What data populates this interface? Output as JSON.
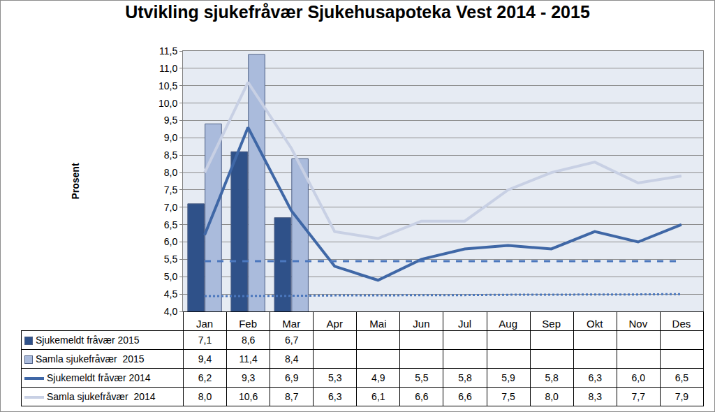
{
  "chart_data": {
    "type": "bar",
    "title": "Utvikling sjukefråvær Sjukehusapoteka Vest 2014 - 2015",
    "y_label": "Prosent",
    "categories": [
      "Jan",
      "Feb",
      "Mar",
      "Apr",
      "Mai",
      "Jun",
      "Jul",
      "Aug",
      "Sep",
      "Okt",
      "Nov",
      "Des"
    ],
    "series": [
      {
        "name": "Sjukemeldt fråvær 2015",
        "type": "bar",
        "color": "#2f5189",
        "values": [
          7.1,
          8.6,
          6.7,
          null,
          null,
          null,
          null,
          null,
          null,
          null,
          null,
          null
        ],
        "value_labels": [
          "7,1",
          "8,6",
          "6,7",
          null,
          null,
          null,
          null,
          null,
          null,
          null,
          null,
          null
        ]
      },
      {
        "name": "Samla sjukefråvær  2015",
        "type": "bar",
        "color": "#aabbdc",
        "values": [
          9.4,
          11.4,
          8.4,
          null,
          null,
          null,
          null,
          null,
          null,
          null,
          null,
          null
        ],
        "value_labels": [
          "9,4",
          "11,4",
          "8,4",
          null,
          null,
          null,
          null,
          null,
          null,
          null,
          null,
          null
        ]
      },
      {
        "name": "Sjukemeldt fråvær 2014",
        "type": "line",
        "color": "#3f67a6",
        "line_style": "solid",
        "values": [
          6.2,
          9.3,
          6.9,
          5.3,
          4.9,
          5.5,
          5.8,
          5.9,
          5.8,
          6.3,
          6.0,
          6.5
        ],
        "value_labels": [
          "6,2",
          "9,3",
          "6,9",
          "5,3",
          "4,9",
          "5,5",
          "5,8",
          "5,9",
          "5,8",
          "6,3",
          "6,0",
          "6,5"
        ]
      },
      {
        "name": "Samla sjukefråvær  2014",
        "type": "line",
        "color": "#c8d0e4",
        "line_style": "solid",
        "values": [
          8.0,
          10.6,
          8.7,
          6.3,
          6.1,
          6.6,
          6.6,
          7.5,
          8.0,
          8.3,
          7.7,
          7.9
        ],
        "value_labels": [
          "8,0",
          "10,6",
          "8,7",
          "6,3",
          "6,1",
          "6,6",
          "6,6",
          "7,5",
          "8,0",
          "8,3",
          "7,7",
          "7,9"
        ]
      },
      {
        "type": "line",
        "color": "#4b77bd",
        "line_style": "dashed",
        "values": [
          5.45,
          5.45,
          5.45,
          5.45,
          5.45,
          5.45,
          5.45,
          5.45,
          5.45,
          5.45,
          5.45,
          5.45
        ]
      },
      {
        "type": "line",
        "color": "#4b77bd",
        "line_style": "dotted",
        "values": [
          4.44,
          4.44,
          4.45,
          4.46,
          4.46,
          4.47,
          4.47,
          4.48,
          4.48,
          4.49,
          4.49,
          4.5
        ]
      }
    ],
    "ylim": [
      4.0,
      11.5
    ],
    "yticks": [
      {
        "value": 4.0,
        "label": "4,0"
      },
      {
        "value": 4.5,
        "label": "4,5"
      },
      {
        "value": 5.0,
        "label": "5,0"
      },
      {
        "value": 5.5,
        "label": "5,5"
      },
      {
        "value": 6.0,
        "label": "6,0"
      },
      {
        "value": 6.5,
        "label": "6,5"
      },
      {
        "value": 7.0,
        "label": "7,0"
      },
      {
        "value": 7.5,
        "label": "7,5"
      },
      {
        "value": 8.0,
        "label": "8,0"
      },
      {
        "value": 8.5,
        "label": "8,5"
      },
      {
        "value": 9.0,
        "label": "9,0"
      },
      {
        "value": 9.5,
        "label": "9,5"
      },
      {
        "value": 10.0,
        "label": "10,0"
      },
      {
        "value": 10.5,
        "label": "10,5"
      },
      {
        "value": 11.0,
        "label": "11,0"
      },
      {
        "value": 11.5,
        "label": "11,5"
      }
    ],
    "grid": true
  }
}
